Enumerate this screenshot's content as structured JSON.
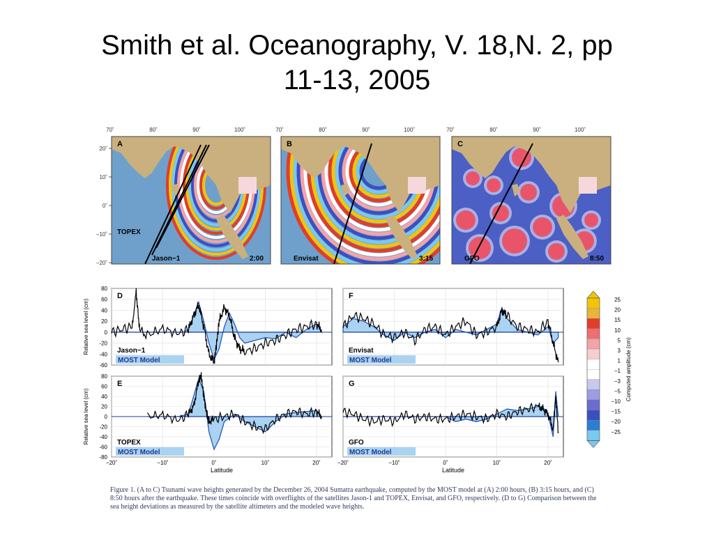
{
  "slide": {
    "title_line1": "Smith et al. Oceanography, V. 18,N. 2, pp",
    "title_line2": "11-13, 2005"
  },
  "maps": {
    "lon_ticks": [
      "70˚",
      "80˚",
      "90˚",
      "100˚"
    ],
    "lat_ticks": [
      "20˚",
      "10˚",
      "0˚",
      "−10˚",
      "−20˚"
    ],
    "panels": [
      {
        "letter": "A",
        "satellite": "Jason−1",
        "time": "2:00",
        "extra_label": "TOPEX"
      },
      {
        "letter": "B",
        "satellite": "Envisat",
        "time": "3:15",
        "extra_label": ""
      },
      {
        "letter": "C",
        "satellite": "GFO",
        "time": "8:50",
        "extra_label": ""
      }
    ],
    "colors": {
      "land": "#c9b07e",
      "ocean": "#6fa0cc"
    }
  },
  "chart_data": [
    {
      "panel": "D",
      "type": "line",
      "satellite_label": "Jason−1",
      "model_label": "MOST Model",
      "ylabel": "Relative sea level (cm)",
      "ylim": [
        -60,
        80
      ],
      "xlim": [
        -20,
        23
      ],
      "series": [
        {
          "name": "Jason−1",
          "x": [
            -20,
            -18,
            -16,
            -15.2,
            -14.5,
            -13,
            -10,
            -7,
            -5,
            -4,
            -3,
            -2,
            -1,
            0,
            0.5,
            1,
            2,
            3,
            4,
            5,
            6,
            8,
            10,
            12,
            14,
            16,
            18,
            20,
            21
          ],
          "y": [
            0,
            5,
            10,
            73,
            2,
            -5,
            6,
            -3,
            5,
            30,
            50,
            10,
            -40,
            -55,
            -20,
            20,
            45,
            30,
            -10,
            -30,
            -35,
            -30,
            -20,
            -15,
            -5,
            5,
            10,
            15,
            5
          ]
        },
        {
          "name": "MOST Model",
          "x": [
            -20,
            -10,
            -6,
            -5,
            -4,
            -3,
            -2,
            -1,
            0,
            1,
            2,
            3,
            4,
            5,
            6,
            8,
            10,
            12,
            14,
            16,
            18,
            20,
            21
          ],
          "y": [
            0,
            0,
            0,
            5,
            30,
            55,
            20,
            -20,
            -50,
            -30,
            10,
            35,
            15,
            -10,
            -20,
            -15,
            -10,
            -12,
            0,
            -10,
            5,
            15,
            0
          ]
        }
      ]
    },
    {
      "panel": "E",
      "type": "line",
      "satellite_label": "TOPEX",
      "model_label": "MOST Model",
      "ylabel": "Relative sea level (cm)",
      "ylim": [
        -80,
        80
      ],
      "xlim": [
        -20,
        23
      ],
      "xlabel": "Latitude",
      "xticks": [
        "−20˚",
        "−10˚",
        "0˚",
        "10˚",
        "20˚"
      ],
      "series": [
        {
          "name": "TOPEX",
          "x": [
            -13,
            -10,
            -7,
            -5,
            -4,
            -3,
            -2.5,
            -2,
            -1.5,
            -1,
            0,
            2,
            4,
            6,
            8,
            10,
            12,
            14,
            16,
            18,
            20,
            21
          ],
          "y": [
            0,
            3,
            -8,
            5,
            20,
            70,
            80,
            40,
            10,
            -10,
            -5,
            0,
            5,
            -10,
            -20,
            -25,
            -5,
            5,
            10,
            5,
            10,
            0
          ]
        },
        {
          "name": "MOST Model",
          "x": [
            -13,
            -10,
            -7,
            -5,
            -4,
            -3,
            -2,
            -1,
            0,
            1,
            2,
            4,
            6,
            8,
            10,
            12,
            14,
            16,
            18,
            20,
            21
          ],
          "y": [
            0,
            0,
            0,
            5,
            40,
            75,
            50,
            -30,
            -65,
            -45,
            -10,
            5,
            -10,
            -20,
            -30,
            -10,
            5,
            8,
            10,
            12,
            0
          ]
        }
      ]
    },
    {
      "panel": "F",
      "type": "line",
      "satellite_label": "Envisat",
      "model_label": "MOST Model",
      "ylim": [
        -60,
        80
      ],
      "xlim": [
        -20,
        23
      ],
      "series": [
        {
          "name": "Envisat",
          "x": [
            -20,
            -18,
            -16,
            -14,
            -12,
            -10,
            -8,
            -6,
            -4,
            -2,
            0,
            2,
            4,
            6,
            8,
            10,
            11,
            12,
            14,
            16,
            18,
            20,
            21,
            22
          ],
          "y": [
            10,
            30,
            25,
            15,
            -5,
            -10,
            0,
            -15,
            5,
            10,
            -5,
            10,
            20,
            -5,
            0,
            10,
            40,
            30,
            10,
            5,
            0,
            20,
            -20,
            -55
          ]
        },
        {
          "name": "MOST Model",
          "x": [
            -20,
            -18,
            -16,
            -14,
            -12,
            -10,
            -8,
            -6,
            -4,
            -2,
            0,
            2,
            4,
            6,
            8,
            10,
            11,
            12,
            14,
            16,
            18,
            20,
            21,
            22
          ],
          "y": [
            10,
            25,
            20,
            10,
            -5,
            -15,
            0,
            -10,
            0,
            5,
            -10,
            5,
            0,
            -5,
            5,
            15,
            45,
            25,
            5,
            0,
            -5,
            10,
            -20,
            -10
          ]
        }
      ]
    },
    {
      "panel": "G",
      "type": "line",
      "satellite_label": "GFO",
      "model_label": "MOST Model",
      "ylim": [
        -80,
        80
      ],
      "xlim": [
        -20,
        23
      ],
      "xlabel": "Latitude",
      "xticks": [
        "−20˚",
        "−10˚",
        "0˚",
        "10˚",
        "20˚"
      ],
      "series": [
        {
          "name": "GFO",
          "x": [
            -20,
            -18,
            -16,
            -14,
            -12,
            -10,
            -8,
            -6,
            -4,
            -2,
            0,
            2,
            4,
            6,
            8,
            10,
            12,
            14,
            16,
            18,
            19,
            20,
            21,
            21.5,
            22
          ],
          "y": [
            10,
            5,
            -5,
            -10,
            -5,
            -10,
            5,
            -5,
            0,
            -5,
            -5,
            0,
            5,
            0,
            -5,
            5,
            0,
            10,
            15,
            20,
            15,
            5,
            -25,
            40,
            -30
          ]
        },
        {
          "name": "MOST Model",
          "x": [
            -20,
            -10,
            -5,
            0,
            2,
            4,
            6,
            8,
            10,
            12,
            14,
            16,
            18,
            19,
            20,
            21,
            21.5,
            22
          ],
          "y": [
            0,
            0,
            0,
            0,
            -10,
            -5,
            -10,
            -5,
            5,
            15,
            12,
            15,
            20,
            18,
            5,
            -40,
            50,
            0
          ]
        }
      ]
    }
  ],
  "colorbar": {
    "label": "Computed amplitude (cm)",
    "ticks": [
      "25",
      "20",
      "15",
      "10",
      "5",
      "3",
      "1",
      "−1",
      "−3",
      "−5",
      "−10",
      "−15",
      "−20",
      "−25"
    ],
    "colors": [
      "#f1c50a",
      "#e9b43a",
      "#e23d2b",
      "#ed6f70",
      "#f4a3a7",
      "#f8cdd0",
      "#ffffff",
      "#ffffff",
      "#c9c9ee",
      "#9c9de2",
      "#6b6bd0",
      "#3d4fc0",
      "#2c7ed2",
      "#79c8f0"
    ]
  },
  "caption": {
    "text": "Figure 1. (A to C) Tsunami wave heights generated by the December 26, 2004 Sumatra earthquake, computed by the MOST model at (A) 2:00 hours, (B) 3:15 hours, and (C) 8:50 hours after the earthquake. These times coincide with overflights of the satellites Jason-1 and TOPEX, Envisat, and GFO, respectively. (D to G) Comparison between the sea height deviations as measured by the satellite altimeters and the modeled wave heights."
  }
}
